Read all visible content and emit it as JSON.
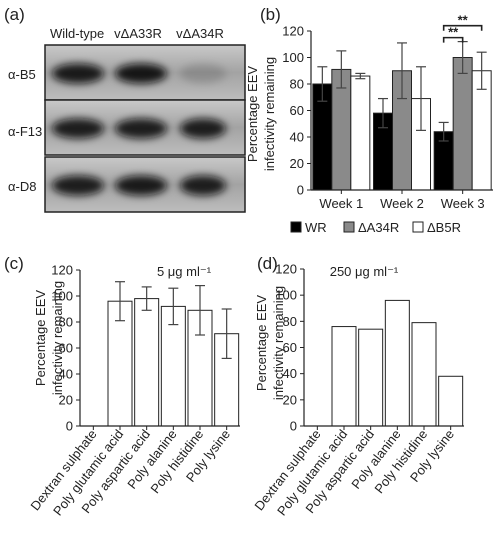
{
  "figure": {
    "background": "#ffffff",
    "text_color": "#222222"
  },
  "blot": {
    "panel_label": "(a)",
    "lanes": [
      "Wild-type",
      "vΔA33R",
      "vΔA34R"
    ],
    "rows": [
      {
        "label": "α-B5",
        "band_intensity": [
          0.92,
          0.95,
          0.15
        ]
      },
      {
        "label": "α-F13",
        "band_intensity": [
          0.9,
          0.9,
          0.9
        ]
      },
      {
        "label": "α-D8",
        "band_intensity": [
          0.9,
          0.92,
          0.9
        ]
      }
    ],
    "colors": {
      "membrane_top": "#c9c9c9",
      "membrane_mid": "#a3a3a3",
      "membrane_bottom": "#bdbdbd",
      "band": "#111111",
      "border": "#222222"
    }
  },
  "chart_data": [
    {
      "panel_label": "(b)",
      "type": "bar",
      "title": "",
      "ylabel_lines": [
        "Percentage  EEV",
        "infectivity remaining"
      ],
      "xlabel": "",
      "ylim": [
        0,
        120
      ],
      "yticks": [
        "0",
        "20",
        "40",
        "60",
        "80",
        "100",
        "120"
      ],
      "grid": false,
      "legend_position": "bottom",
      "categories": [
        "Week 1",
        "Week 2",
        "Week 3"
      ],
      "series": [
        {
          "name": "WR",
          "color": "#000000",
          "values": [
            80,
            58,
            44
          ],
          "errors": [
            13,
            11,
            7
          ]
        },
        {
          "name": "ΔA34R",
          "color": "#8a8a8a",
          "values": [
            91,
            90,
            100
          ],
          "errors": [
            14,
            21,
            12
          ]
        },
        {
          "name": "ΔB5R",
          "color": "#ffffff",
          "values": [
            86,
            69,
            90
          ],
          "errors": [
            2,
            24,
            14
          ]
        }
      ],
      "annotations": [
        {
          "text": "**",
          "from_series": 0,
          "to_series": 2,
          "category": 2,
          "level": 124
        },
        {
          "text": "**",
          "from_series": 0,
          "to_series": 1,
          "category": 2,
          "level": 115
        }
      ]
    },
    {
      "panel_label": "(c)",
      "type": "bar",
      "title": "5 μg ml⁻¹",
      "ylabel_lines": [
        "Percentage  EEV",
        "infectivity remaining"
      ],
      "xlabel": "",
      "ylim": [
        0,
        120
      ],
      "yticks": [
        "0",
        "20",
        "40",
        "60",
        "80",
        "100",
        "120"
      ],
      "grid": false,
      "legend_position": "none",
      "categories": [
        "Dextran sulphate",
        "Poly glutamic acid",
        "Poly aspartic acid",
        "Poly alanine",
        "Poly histidine",
        "Poly lysine"
      ],
      "series": [
        {
          "color": "#ffffff",
          "values": [
            0,
            96,
            98,
            92,
            89,
            71
          ],
          "errors": [
            0,
            15,
            9,
            14,
            19,
            19
          ]
        }
      ]
    },
    {
      "panel_label": "(d)",
      "type": "bar",
      "title": "250 μg ml⁻¹",
      "ylabel_lines": [
        "Percentage  EEV",
        "infectivity remaining"
      ],
      "xlabel": "",
      "ylim": [
        0,
        120
      ],
      "yticks": [
        "0",
        "20",
        "40",
        "60",
        "80",
        "100",
        "120"
      ],
      "grid": false,
      "legend_position": "none",
      "categories": [
        "Dextran sulphate",
        "Poly glutamic acid",
        "Poly aspartic acid",
        "Poly alanine",
        "Poly histidine",
        "Poly lysine"
      ],
      "series": [
        {
          "color": "#ffffff",
          "values": [
            0,
            76,
            74,
            96,
            79,
            38
          ],
          "errors": [
            0,
            0,
            0,
            0,
            0,
            0
          ]
        }
      ]
    }
  ]
}
